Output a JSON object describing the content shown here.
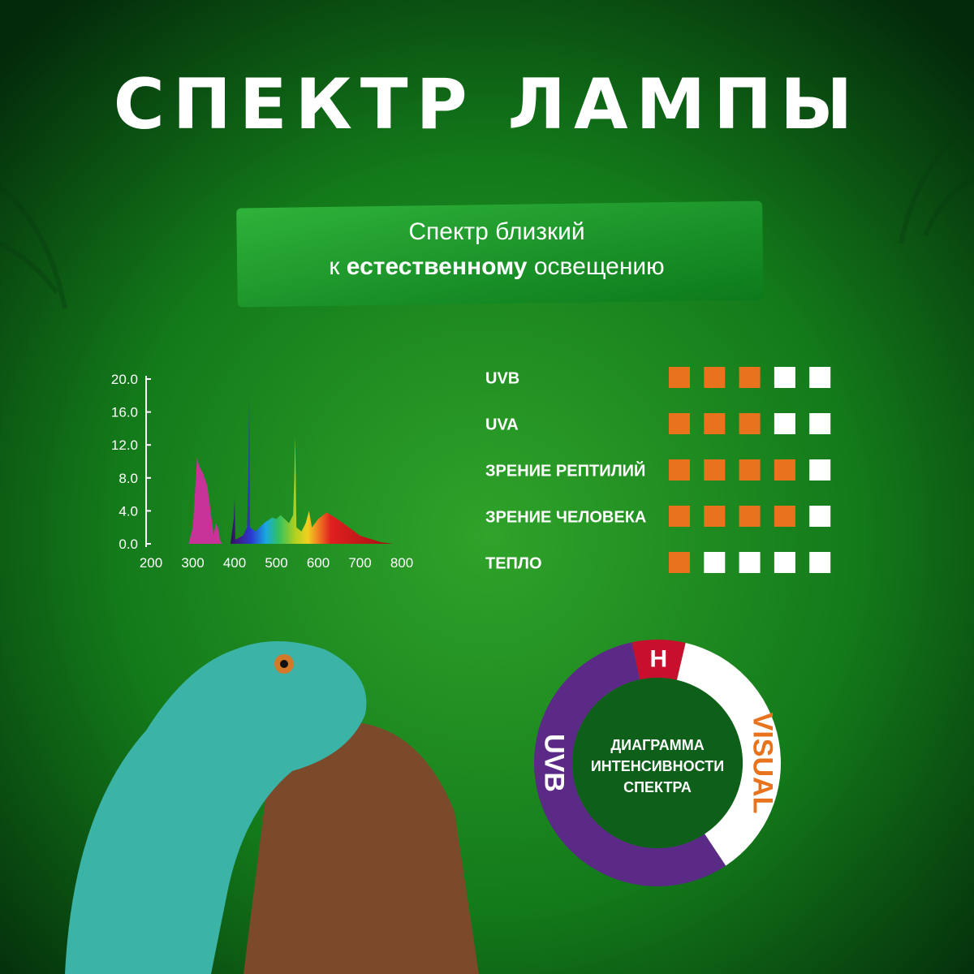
{
  "title": "СПЕКТР ЛАМПЫ",
  "banner": {
    "line1": "Спектр близкий",
    "line2_prefix": "к",
    "line2_bold": "естественному",
    "line2_suffix": "освещению"
  },
  "spectrum": {
    "type": "area",
    "xlim": [
      200,
      800
    ],
    "ylim": [
      0,
      20
    ],
    "xticks": [
      200,
      300,
      400,
      500,
      600,
      700,
      800
    ],
    "yticks": [
      {
        "value": 0,
        "label": "0.0"
      },
      {
        "value": 4,
        "label": "4.0"
      },
      {
        "value": 8,
        "label": "8.0"
      },
      {
        "value": 12,
        "label": "12.0"
      },
      {
        "value": 16,
        "label": "16.0"
      },
      {
        "value": 20,
        "label": "20.0"
      }
    ],
    "x": [
      290,
      300,
      305,
      310,
      315,
      325,
      335,
      345,
      350,
      355,
      360,
      365,
      370,
      390,
      398,
      400,
      402,
      420,
      430,
      433,
      435,
      437,
      450,
      470,
      490,
      500,
      510,
      520,
      530,
      540,
      543,
      545,
      548,
      560,
      570,
      578,
      585,
      600,
      620,
      640,
      660,
      700,
      750,
      780
    ],
    "values": [
      0,
      2,
      6,
      10.5,
      9.5,
      8.5,
      7,
      3,
      1,
      2.5,
      2,
      0.5,
      0,
      0,
      3,
      5.5,
      0.5,
      1,
      2,
      8,
      18,
      2,
      1.5,
      2.5,
      3.2,
      3,
      3.5,
      3,
      2.5,
      3.5,
      8,
      13,
      2,
      1.5,
      2.5,
      4,
      2,
      3,
      3.8,
      3.2,
      2.5,
      1,
      0.2,
      0
    ]
  },
  "ratings": {
    "max": 5,
    "filled_color": "#e8731c",
    "empty_color": "#ffffff",
    "rows": [
      {
        "label": "UVB",
        "value": 3
      },
      {
        "label": "UVA",
        "value": 3
      },
      {
        "label": "ЗРЕНИЕ РЕПТИЛИЙ",
        "value": 4
      },
      {
        "label": "ЗРЕНИЕ ЧЕЛОВЕКА",
        "value": 4
      },
      {
        "label": "ТЕПЛО",
        "value": 1
      }
    ]
  },
  "donut": {
    "type": "donut",
    "center": [
      "ДИАГРАММА",
      "ИНТЕНСИВНОСТИ",
      "СПЕКТРА"
    ],
    "segments": [
      {
        "label": "H",
        "value": 7,
        "color": "#c8102e",
        "text_color": "#ffffff"
      },
      {
        "label": "VISUAL",
        "value": 37,
        "color": "#ffffff",
        "text_color": "#e8731c"
      },
      {
        "label": "UVB",
        "value": 56,
        "color": "#5b2a86",
        "text_color": "#ffffff"
      }
    ]
  }
}
